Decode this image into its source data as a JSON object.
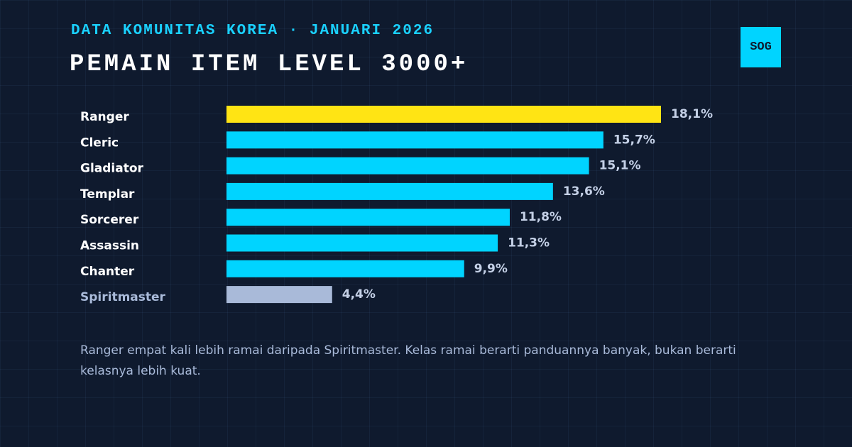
{
  "chart_data": {
    "type": "bar",
    "orientation": "horizontal",
    "subtitle": "DATA KOMUNITAS KOREA · JANUARI 2026",
    "title": "PEMAIN ITEM LEVEL 3000+",
    "badge": "SOG",
    "categories": [
      "Ranger",
      "Cleric",
      "Gladiator",
      "Templar",
      "Sorcerer",
      "Assassin",
      "Chanter",
      "Spiritmaster"
    ],
    "values": [
      18.1,
      15.7,
      15.1,
      13.6,
      11.8,
      11.3,
      9.9,
      4.4
    ],
    "value_labels": [
      "18,1%",
      "15,7%",
      "15,1%",
      "13,6%",
      "11,8%",
      "11,3%",
      "9,9%",
      "4,4%"
    ],
    "colors": [
      "#ffe414",
      "#00d4ff",
      "#00d4ff",
      "#00d4ff",
      "#00d4ff",
      "#00d4ff",
      "#00d4ff",
      "#a9bad9"
    ],
    "note": "Ranger empat kali lebih ramai daripada Spiritmaster. Kelas ramai berarti panduannya banyak, bukan berarti kelasnya lebih kuat."
  }
}
